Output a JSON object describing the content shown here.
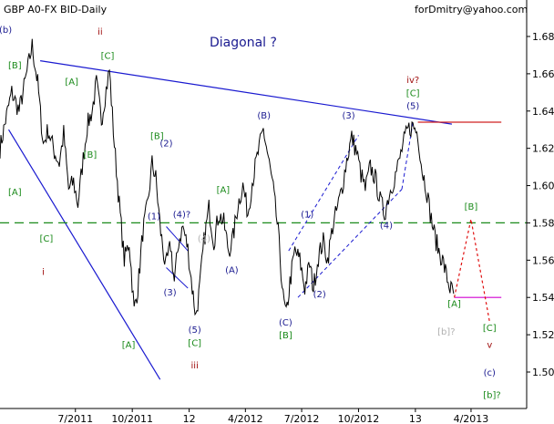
{
  "header": {
    "instrument": "GBP A0-FX BID-Daily",
    "author": "forDmitry@yahoo.com"
  },
  "colors": {
    "price": "#000000",
    "trendline": "#1a1ad0",
    "resistance": "#d02020",
    "support": "#d000d0",
    "level_green": "#1a8a1a",
    "projection": "#e01010",
    "wave_blue": "#1a1a90",
    "wave_green": "#1a8a1a",
    "wave_red": "#a01010",
    "wave_gray": "#b0b0b0"
  },
  "chart_data": {
    "type": "line",
    "title": "Diagonal ?",
    "xlabel": "",
    "ylabel": "",
    "ylim": [
      1.485,
      1.695
    ],
    "x_range": [
      "2011-03",
      "2013-06"
    ],
    "grid": false,
    "y_ticks": [
      "1.68",
      "1.66",
      "1.64",
      "1.62",
      "1.60",
      "1.58",
      "1.56",
      "1.54",
      "1.52",
      "1.50"
    ],
    "x_ticks": [
      {
        "label": "7/2011",
        "x": "2011-07"
      },
      {
        "label": "10/2011",
        "x": "2011-10"
      },
      {
        "label": "12",
        "x": "2012-01"
      },
      {
        "label": "4/2012",
        "x": "2012-04"
      },
      {
        "label": "7/2012",
        "x": "2012-07"
      },
      {
        "label": "10/2012",
        "x": "2012-10"
      },
      {
        "label": "13",
        "x": "2013-01"
      },
      {
        "label": "4/2013",
        "x": "2013-04"
      }
    ],
    "series": [
      {
        "values": [
          [
            "2011-03-01",
            1.62
          ],
          [
            "2011-03-10",
            1.635
          ],
          [
            "2011-03-20",
            1.65
          ],
          [
            "2011-04-01",
            1.64
          ],
          [
            "2011-04-12",
            1.658
          ],
          [
            "2011-04-22",
            1.675
          ],
          [
            "2011-05-01",
            1.655
          ],
          [
            "2011-05-10",
            1.622
          ],
          [
            "2011-05-18",
            1.63
          ],
          [
            "2011-05-28",
            1.618
          ],
          [
            "2011-06-05",
            1.612
          ],
          [
            "2011-06-12",
            1.628
          ],
          [
            "2011-06-20",
            1.598
          ],
          [
            "2011-06-28",
            1.602
          ],
          [
            "2011-07-05",
            1.59
          ],
          [
            "2011-07-12",
            1.61
          ],
          [
            "2011-07-20",
            1.632
          ],
          [
            "2011-07-28",
            1.64
          ],
          [
            "2011-08-04",
            1.655
          ],
          [
            "2011-08-12",
            1.635
          ],
          [
            "2011-08-18",
            1.648
          ],
          [
            "2011-08-25",
            1.662
          ],
          [
            "2011-09-02",
            1.622
          ],
          [
            "2011-09-10",
            1.59
          ],
          [
            "2011-09-18",
            1.56
          ],
          [
            "2011-09-26",
            1.57
          ],
          [
            "2011-10-04",
            1.533
          ],
          [
            "2011-10-10",
            1.545
          ],
          [
            "2011-10-18",
            1.575
          ],
          [
            "2011-10-26",
            1.59
          ],
          [
            "2011-11-02",
            1.612
          ],
          [
            "2011-11-08",
            1.604
          ],
          [
            "2011-11-16",
            1.575
          ],
          [
            "2011-11-24",
            1.556
          ],
          [
            "2011-12-02",
            1.568
          ],
          [
            "2011-12-08",
            1.548
          ],
          [
            "2011-12-15",
            1.57
          ],
          [
            "2011-12-22",
            1.578
          ],
          [
            "2011-12-30",
            1.566
          ],
          [
            "2012-01-06",
            1.545
          ],
          [
            "2012-01-12",
            1.53
          ],
          [
            "2012-01-18",
            1.545
          ],
          [
            "2012-01-25",
            1.57
          ],
          [
            "2012-02-02",
            1.588
          ],
          [
            "2012-02-10",
            1.57
          ],
          [
            "2012-02-18",
            1.585
          ],
          [
            "2012-02-26",
            1.58
          ],
          [
            "2012-03-05",
            1.565
          ],
          [
            "2012-03-12",
            1.572
          ],
          [
            "2012-03-20",
            1.59
          ],
          [
            "2012-03-28",
            1.6
          ],
          [
            "2012-04-05",
            1.585
          ],
          [
            "2012-04-12",
            1.602
          ],
          [
            "2012-04-20",
            1.615
          ],
          [
            "2012-04-30",
            1.63
          ],
          [
            "2012-05-08",
            1.615
          ],
          [
            "2012-05-16",
            1.598
          ],
          [
            "2012-05-24",
            1.575
          ],
          [
            "2012-06-01",
            1.54
          ],
          [
            "2012-06-06",
            1.53
          ],
          [
            "2012-06-12",
            1.548
          ],
          [
            "2012-06-20",
            1.565
          ],
          [
            "2012-06-28",
            1.56
          ],
          [
            "2012-07-06",
            1.545
          ],
          [
            "2012-07-14",
            1.558
          ],
          [
            "2012-07-20",
            1.545
          ],
          [
            "2012-07-28",
            1.562
          ],
          [
            "2012-08-05",
            1.57
          ],
          [
            "2012-08-12",
            1.56
          ],
          [
            "2012-08-20",
            1.578
          ],
          [
            "2012-08-28",
            1.588
          ],
          [
            "2012-09-05",
            1.6
          ],
          [
            "2012-09-12",
            1.614
          ],
          [
            "2012-09-20",
            1.626
          ],
          [
            "2012-09-28",
            1.618
          ],
          [
            "2012-10-05",
            1.606
          ],
          [
            "2012-10-12",
            1.598
          ],
          [
            "2012-10-20",
            1.61
          ],
          [
            "2012-10-28",
            1.604
          ],
          [
            "2012-11-05",
            1.592
          ],
          [
            "2012-11-12",
            1.585
          ],
          [
            "2012-11-20",
            1.596
          ],
          [
            "2012-11-28",
            1.604
          ],
          [
            "2012-12-05",
            1.612
          ],
          [
            "2012-12-12",
            1.622
          ],
          [
            "2012-12-20",
            1.63
          ],
          [
            "2012-12-28",
            1.632
          ],
          [
            "2013-01-05",
            1.628
          ],
          [
            "2013-01-12",
            1.608
          ],
          [
            "2013-01-18",
            1.6
          ],
          [
            "2013-01-25",
            1.585
          ],
          [
            "2013-02-02",
            1.572
          ],
          [
            "2013-02-08",
            1.565
          ],
          [
            "2013-02-14",
            1.56
          ],
          [
            "2013-02-20",
            1.552
          ],
          [
            "2013-02-26",
            1.545
          ],
          [
            "2013-03-04",
            1.542
          ]
        ]
      }
    ],
    "lines": [
      {
        "kind": "trendline",
        "points": [
          [
            "2011-05-05",
            1.667
          ],
          [
            "2013-03-01",
            1.633
          ]
        ]
      },
      {
        "kind": "trendline",
        "points": [
          [
            "2011-03-15",
            1.63
          ],
          [
            "2011-11-15",
            1.496
          ]
        ]
      },
      {
        "kind": "resistance",
        "points": [
          [
            "2013-01-05",
            1.634
          ],
          [
            "2013-05-20",
            1.634
          ]
        ]
      },
      {
        "kind": "support",
        "points": [
          [
            "2013-03-05",
            1.54
          ],
          [
            "2013-05-20",
            1.54
          ]
        ]
      },
      {
        "kind": "level",
        "points": [
          [
            "2011-03-01",
            1.58
          ],
          [
            "2013-06-30",
            1.58
          ]
        ]
      },
      {
        "kind": "projection",
        "points": [
          [
            "2013-03-05",
            1.54
          ],
          [
            "2013-04-01",
            1.582
          ],
          [
            "2013-05-01",
            1.527
          ]
        ]
      },
      {
        "kind": "channel",
        "points": [
          [
            "2012-06-10",
            1.565
          ],
          [
            "2012-10-01",
            1.627
          ]
        ]
      },
      {
        "kind": "channel",
        "points": [
          [
            "2012-06-25",
            1.54
          ],
          [
            "2012-12-10",
            1.598
          ]
        ]
      },
      {
        "kind": "channel",
        "points": [
          [
            "2012-12-10",
            1.598
          ],
          [
            "2012-12-28",
            1.634
          ]
        ]
      },
      {
        "kind": "wedge",
        "points": [
          [
            "2011-11-25",
            1.556
          ],
          [
            "2011-12-30",
            1.545
          ]
        ]
      },
      {
        "kind": "wedge",
        "points": [
          [
            "2011-11-25",
            1.578
          ],
          [
            "2011-12-30",
            1.565
          ]
        ]
      }
    ],
    "annotations": [
      {
        "text": "(b)",
        "x": "2011-03-10",
        "y": 1.682,
        "color": "wave_blue",
        "size": "lg"
      },
      {
        "text": "ii",
        "x": "2011-08-10",
        "y": 1.681,
        "color": "wave_red",
        "size": "md"
      },
      {
        "text": "[B]",
        "x": "2011-03-25",
        "y": 1.663,
        "color": "wave_green",
        "size": "sm"
      },
      {
        "text": "[C]",
        "x": "2011-08-22",
        "y": 1.668,
        "color": "wave_green",
        "size": "sm"
      },
      {
        "text": "[A]",
        "x": "2011-06-25",
        "y": 1.654,
        "color": "wave_green",
        "size": "sm"
      },
      {
        "text": "[B]",
        "x": "2011-07-25",
        "y": 1.615,
        "color": "wave_green",
        "size": "sm"
      },
      {
        "text": "[A]",
        "x": "2011-03-25",
        "y": 1.595,
        "color": "wave_green",
        "size": "sm"
      },
      {
        "text": "[C]",
        "x": "2011-05-15",
        "y": 1.57,
        "color": "wave_green",
        "size": "sm"
      },
      {
        "text": "i",
        "x": "2011-05-10",
        "y": 1.552,
        "color": "wave_red",
        "size": "md"
      },
      {
        "text": "[A]",
        "x": "2011-09-25",
        "y": 1.513,
        "color": "wave_green",
        "size": "sm"
      },
      {
        "text": "[B]",
        "x": "2011-11-10",
        "y": 1.625,
        "color": "wave_green",
        "size": "sm"
      },
      {
        "text": "(2)",
        "x": "2011-11-25",
        "y": 1.621,
        "color": "wave_blue",
        "size": "sm"
      },
      {
        "text": "(1)",
        "x": "2011-11-05",
        "y": 1.582,
        "color": "wave_blue",
        "size": "sm"
      },
      {
        "text": "(4)?",
        "x": "2011-12-20",
        "y": 1.583,
        "color": "wave_blue",
        "size": "sm"
      },
      {
        "text": "(3)",
        "x": "2011-12-01",
        "y": 1.541,
        "color": "wave_blue",
        "size": "sm"
      },
      {
        "text": "(4)",
        "x": "2012-01-25",
        "y": 1.57,
        "color": "wave_gray",
        "size": "sm"
      },
      {
        "text": "(5)",
        "x": "2012-01-10",
        "y": 1.521,
        "color": "wave_blue",
        "size": "sm"
      },
      {
        "text": "[C]",
        "x": "2012-01-10",
        "y": 1.514,
        "color": "wave_green",
        "size": "sm"
      },
      {
        "text": "iii",
        "x": "2012-01-10",
        "y": 1.502,
        "color": "wave_red",
        "size": "md"
      },
      {
        "text": "[A]",
        "x": "2012-02-25",
        "y": 1.596,
        "color": "wave_green",
        "size": "sm"
      },
      {
        "text": "(A)",
        "x": "2012-03-10",
        "y": 1.553,
        "color": "wave_blue",
        "size": "sm"
      },
      {
        "text": "(B)",
        "x": "2012-05-01",
        "y": 1.636,
        "color": "wave_blue",
        "size": "sm"
      },
      {
        "text": "(1)",
        "x": "2012-07-10",
        "y": 1.583,
        "color": "wave_blue",
        "size": "sm"
      },
      {
        "text": "(C)",
        "x": "2012-06-05",
        "y": 1.525,
        "color": "wave_blue",
        "size": "sm"
      },
      {
        "text": "[B]",
        "x": "2012-06-05",
        "y": 1.518,
        "color": "wave_green",
        "size": "sm"
      },
      {
        "text": "(2)",
        "x": "2012-07-30",
        "y": 1.54,
        "color": "wave_blue",
        "size": "sm"
      },
      {
        "text": "(3)",
        "x": "2012-09-15",
        "y": 1.636,
        "color": "wave_blue",
        "size": "sm"
      },
      {
        "text": "(4)",
        "x": "2012-11-15",
        "y": 1.577,
        "color": "wave_blue",
        "size": "sm"
      },
      {
        "text": "iv?",
        "x": "2012-12-28",
        "y": 1.655,
        "color": "wave_red",
        "size": "md"
      },
      {
        "text": "[C]",
        "x": "2012-12-28",
        "y": 1.648,
        "color": "wave_green",
        "size": "sm"
      },
      {
        "text": "(5)",
        "x": "2012-12-28",
        "y": 1.641,
        "color": "wave_blue",
        "size": "sm"
      },
      {
        "text": "[A]",
        "x": "2013-03-05",
        "y": 1.535,
        "color": "wave_green",
        "size": "sm"
      },
      {
        "text": "[B]",
        "x": "2013-04-01",
        "y": 1.587,
        "color": "wave_green",
        "size": "sm"
      },
      {
        "text": "[b]?",
        "x": "2013-02-20",
        "y": 1.52,
        "color": "wave_gray",
        "size": "md"
      },
      {
        "text": "[C]",
        "x": "2013-05-01",
        "y": 1.522,
        "color": "wave_green",
        "size": "sm"
      },
      {
        "text": "v",
        "x": "2013-05-01",
        "y": 1.513,
        "color": "wave_red",
        "size": "md"
      },
      {
        "text": "(c)",
        "x": "2013-05-01",
        "y": 1.498,
        "color": "wave_blue",
        "size": "lg"
      },
      {
        "text": "[b]?",
        "x": "2013-05-05",
        "y": 1.486,
        "color": "wave_green",
        "size": "lg"
      }
    ]
  }
}
